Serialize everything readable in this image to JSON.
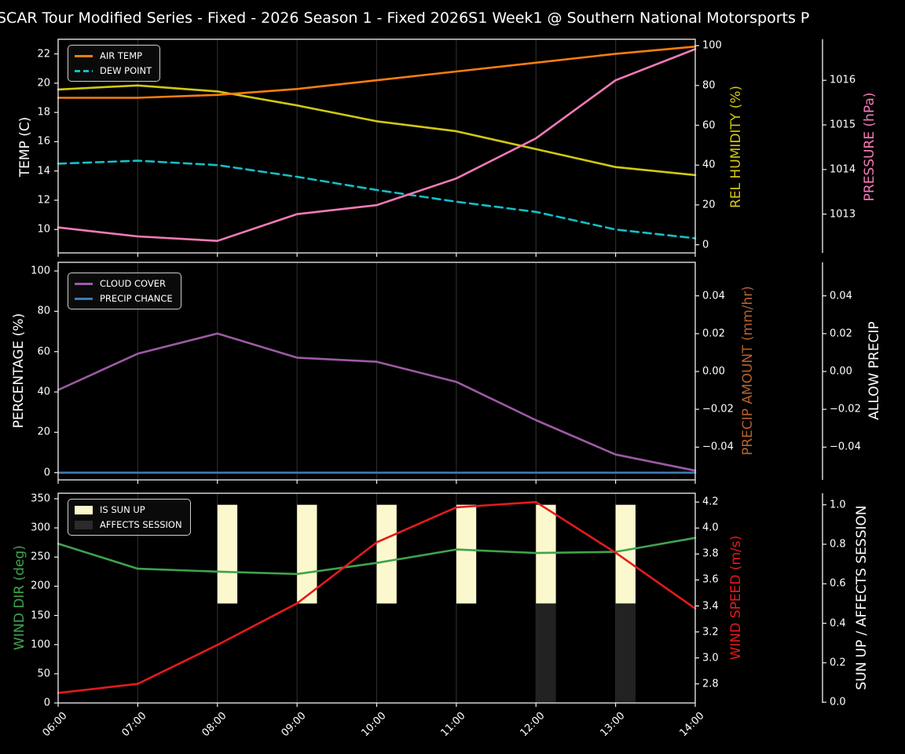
{
  "title": "SCAR Tour Modified Series - Fixed - 2026 Season 1 - Fixed 2026S1 Week1 @ Southern National Motorsports P",
  "colors": {
    "background": "#000000",
    "spine": "#f2f2f2",
    "grid": "#2a2a2a",
    "tick_text": "#ffffff",
    "air_temp": "#fb7d0d",
    "dew_point": "#14bfc7",
    "rel_humidity": "#d2c811",
    "pressure": "#f47ab8",
    "cloud_cover": "#9d5aa5",
    "precip_chance": "#3d7ab8",
    "precip_amount_label": "#b4622d",
    "allow_precip_label": "#ffffff",
    "wind_dir": "#3fa34d",
    "wind_speed": "#e31b1c",
    "sun_up_fill": "#fbf8cd",
    "affects_fill": "#222222",
    "white": "#ffffff"
  },
  "chart_data": [
    {
      "type": "line",
      "x": [
        6,
        7,
        8,
        9,
        10,
        11,
        12,
        13,
        14
      ],
      "axes": {
        "temp": {
          "label": "TEMP (C)",
          "side": "left",
          "range": [
            8.4,
            23.0
          ],
          "ticks": [
            22,
            20,
            18,
            16,
            14,
            12,
            10
          ],
          "tick_labels": [
            "22",
            "20",
            "18",
            "16",
            "14",
            "12",
            "10"
          ]
        },
        "humidity": {
          "label": "REL HUMIDITY (%)",
          "side": "right1",
          "range": [
            -4.1,
            103.2
          ],
          "ticks": [
            100,
            80,
            60,
            40,
            20,
            0
          ],
          "tick_labels": [
            "100",
            "80",
            "60",
            "40",
            "20",
            "0"
          ]
        },
        "pressure": {
          "label": "PRESSURE (hPa)",
          "side": "right2",
          "range": [
            1012.13,
            1016.92
          ],
          "ticks": [
            1016,
            1015,
            1014,
            1013
          ],
          "tick_labels": [
            "1016",
            "1015",
            "1014",
            "1013"
          ]
        }
      },
      "series": [
        {
          "name": "REL HUMIDITY",
          "axis": "humidity",
          "color_key": "rel_humidity",
          "style": "solid",
          "values": [
            78,
            80,
            77,
            70,
            62,
            57,
            48,
            39,
            35
          ]
        },
        {
          "name": "DEW POINT",
          "axis": "temp",
          "color_key": "dew_point",
          "style": "dashed",
          "values": [
            14.5,
            14.7,
            14.4,
            13.6,
            12.7,
            11.9,
            11.2,
            10.0,
            9.4
          ]
        },
        {
          "name": "AIR TEMP",
          "axis": "temp",
          "color_key": "air_temp",
          "style": "solid",
          "values": [
            19.0,
            19.0,
            19.2,
            19.6,
            20.2,
            20.8,
            21.4,
            22.0,
            22.5
          ]
        },
        {
          "name": "PRESSURE",
          "axis": "pressure",
          "color_key": "pressure",
          "style": "solid",
          "values": [
            1012.7,
            1012.5,
            1012.4,
            1013.0,
            1013.2,
            1013.8,
            1014.7,
            1016.0,
            1016.7
          ]
        }
      ],
      "legend": [
        {
          "label": "AIR TEMP",
          "swatch": "line",
          "color_key": "air_temp"
        },
        {
          "label": "DEW POINT",
          "swatch": "dashed",
          "color_key": "dew_point"
        }
      ]
    },
    {
      "type": "line",
      "x": [
        6,
        7,
        8,
        9,
        10,
        11,
        12,
        13,
        14
      ],
      "axes": {
        "pct": {
          "label": "PERCENTAGE (%)",
          "side": "left",
          "range": [
            -3.6,
            104.3
          ],
          "ticks": [
            100,
            80,
            60,
            40,
            20,
            0
          ],
          "tick_labels": [
            "100",
            "80",
            "60",
            "40",
            "20",
            "0"
          ]
        },
        "precip": {
          "label": "PRECIP AMOUNT (mm/hr)",
          "side": "right1",
          "range": [
            -0.0573,
            0.0577
          ],
          "ticks": [
            0.04,
            0.02,
            0,
            -0.02,
            -0.04
          ],
          "tick_labels": [
            "0.04",
            "0.02",
            "0.00",
            "−0.02",
            "−0.04"
          ]
        },
        "allow": {
          "label": "ALLOW PRECIP",
          "side": "right2",
          "range": [
            -0.0573,
            0.0577
          ],
          "ticks": [
            0.04,
            0.02,
            0,
            -0.02,
            -0.04
          ],
          "tick_labels": [
            "0.04",
            "0.02",
            "0.00",
            "−0.02",
            "−0.04"
          ]
        }
      },
      "series": [
        {
          "name": "CLOUD COVER",
          "axis": "pct",
          "color_key": "cloud_cover",
          "style": "solid",
          "values": [
            41,
            59,
            69,
            57,
            55,
            45,
            26,
            9,
            1
          ]
        },
        {
          "name": "PRECIP CHANCE",
          "axis": "pct",
          "color_key": "precip_chance",
          "style": "solid",
          "values": [
            0,
            0,
            0,
            0,
            0,
            0,
            0,
            0,
            0
          ]
        }
      ],
      "legend": [
        {
          "label": "CLOUD COVER",
          "swatch": "line",
          "color_key": "cloud_cover"
        },
        {
          "label": "PRECIP CHANCE",
          "swatch": "line",
          "color_key": "precip_chance"
        }
      ]
    },
    {
      "type": "line",
      "x": [
        6,
        7,
        8,
        9,
        10,
        11,
        12,
        13,
        14
      ],
      "x_tick_labels": [
        "06:00",
        "07:00",
        "08:00",
        "09:00",
        "10:00",
        "11:00",
        "12:00",
        "13:00",
        "14:00"
      ],
      "axes": {
        "deg": {
          "label": "WIND DIR (deg)",
          "side": "left",
          "range": [
            0,
            359.4
          ],
          "ticks": [
            350,
            300,
            250,
            200,
            150,
            100,
            50,
            0
          ],
          "tick_labels": [
            "350",
            "300",
            "250",
            "200",
            "150",
            "100",
            "50",
            "0"
          ]
        },
        "speed": {
          "label": "WIND SPEED (m/s)",
          "side": "right1",
          "range": [
            2.653,
            4.268
          ],
          "ticks": [
            4.2,
            4.0,
            3.8,
            3.6,
            3.4,
            3.2,
            3.0,
            2.8
          ],
          "tick_labels": [
            "4.2",
            "4.0",
            "3.8",
            "3.6",
            "3.4",
            "3.2",
            "3.0",
            "2.8"
          ]
        },
        "sun": {
          "label": "SUN UP / AFFECTS SESSION",
          "side": "right2",
          "range": [
            -0.0035,
            1.0584
          ],
          "ticks": [
            1.0,
            0.8,
            0.6,
            0.4,
            0.2,
            0.0
          ],
          "tick_labels": [
            "1.0",
            "0.8",
            "0.6",
            "0.4",
            "0.2",
            "0.0"
          ]
        }
      },
      "series": [
        {
          "name": "WIND DIR",
          "axis": "deg",
          "color_key": "wind_dir",
          "style": "solid",
          "values": [
            273,
            230,
            225,
            221,
            240,
            263,
            257,
            259,
            283
          ]
        },
        {
          "name": "WIND SPEED",
          "axis": "speed",
          "color_key": "wind_speed",
          "style": "solid",
          "values": [
            2.73,
            2.8,
            3.1,
            3.42,
            3.89,
            4.16,
            4.2,
            3.81,
            3.38
          ]
        }
      ],
      "bands": {
        "sun_up_hours": [
          8,
          9,
          10,
          11,
          12,
          13
        ],
        "affects_hours": [
          12,
          13
        ],
        "bar_width_hours": 0.25,
        "sun_band": [
          0.5,
          1.0
        ],
        "affects_band": [
          0.0,
          0.5
        ]
      },
      "legend": [
        {
          "label": "IS SUN UP",
          "swatch": "patch",
          "color_key": "sun_up_fill"
        },
        {
          "label": "AFFECTS SESSION",
          "swatch": "patch",
          "color_key": "affects_fill"
        }
      ]
    }
  ]
}
